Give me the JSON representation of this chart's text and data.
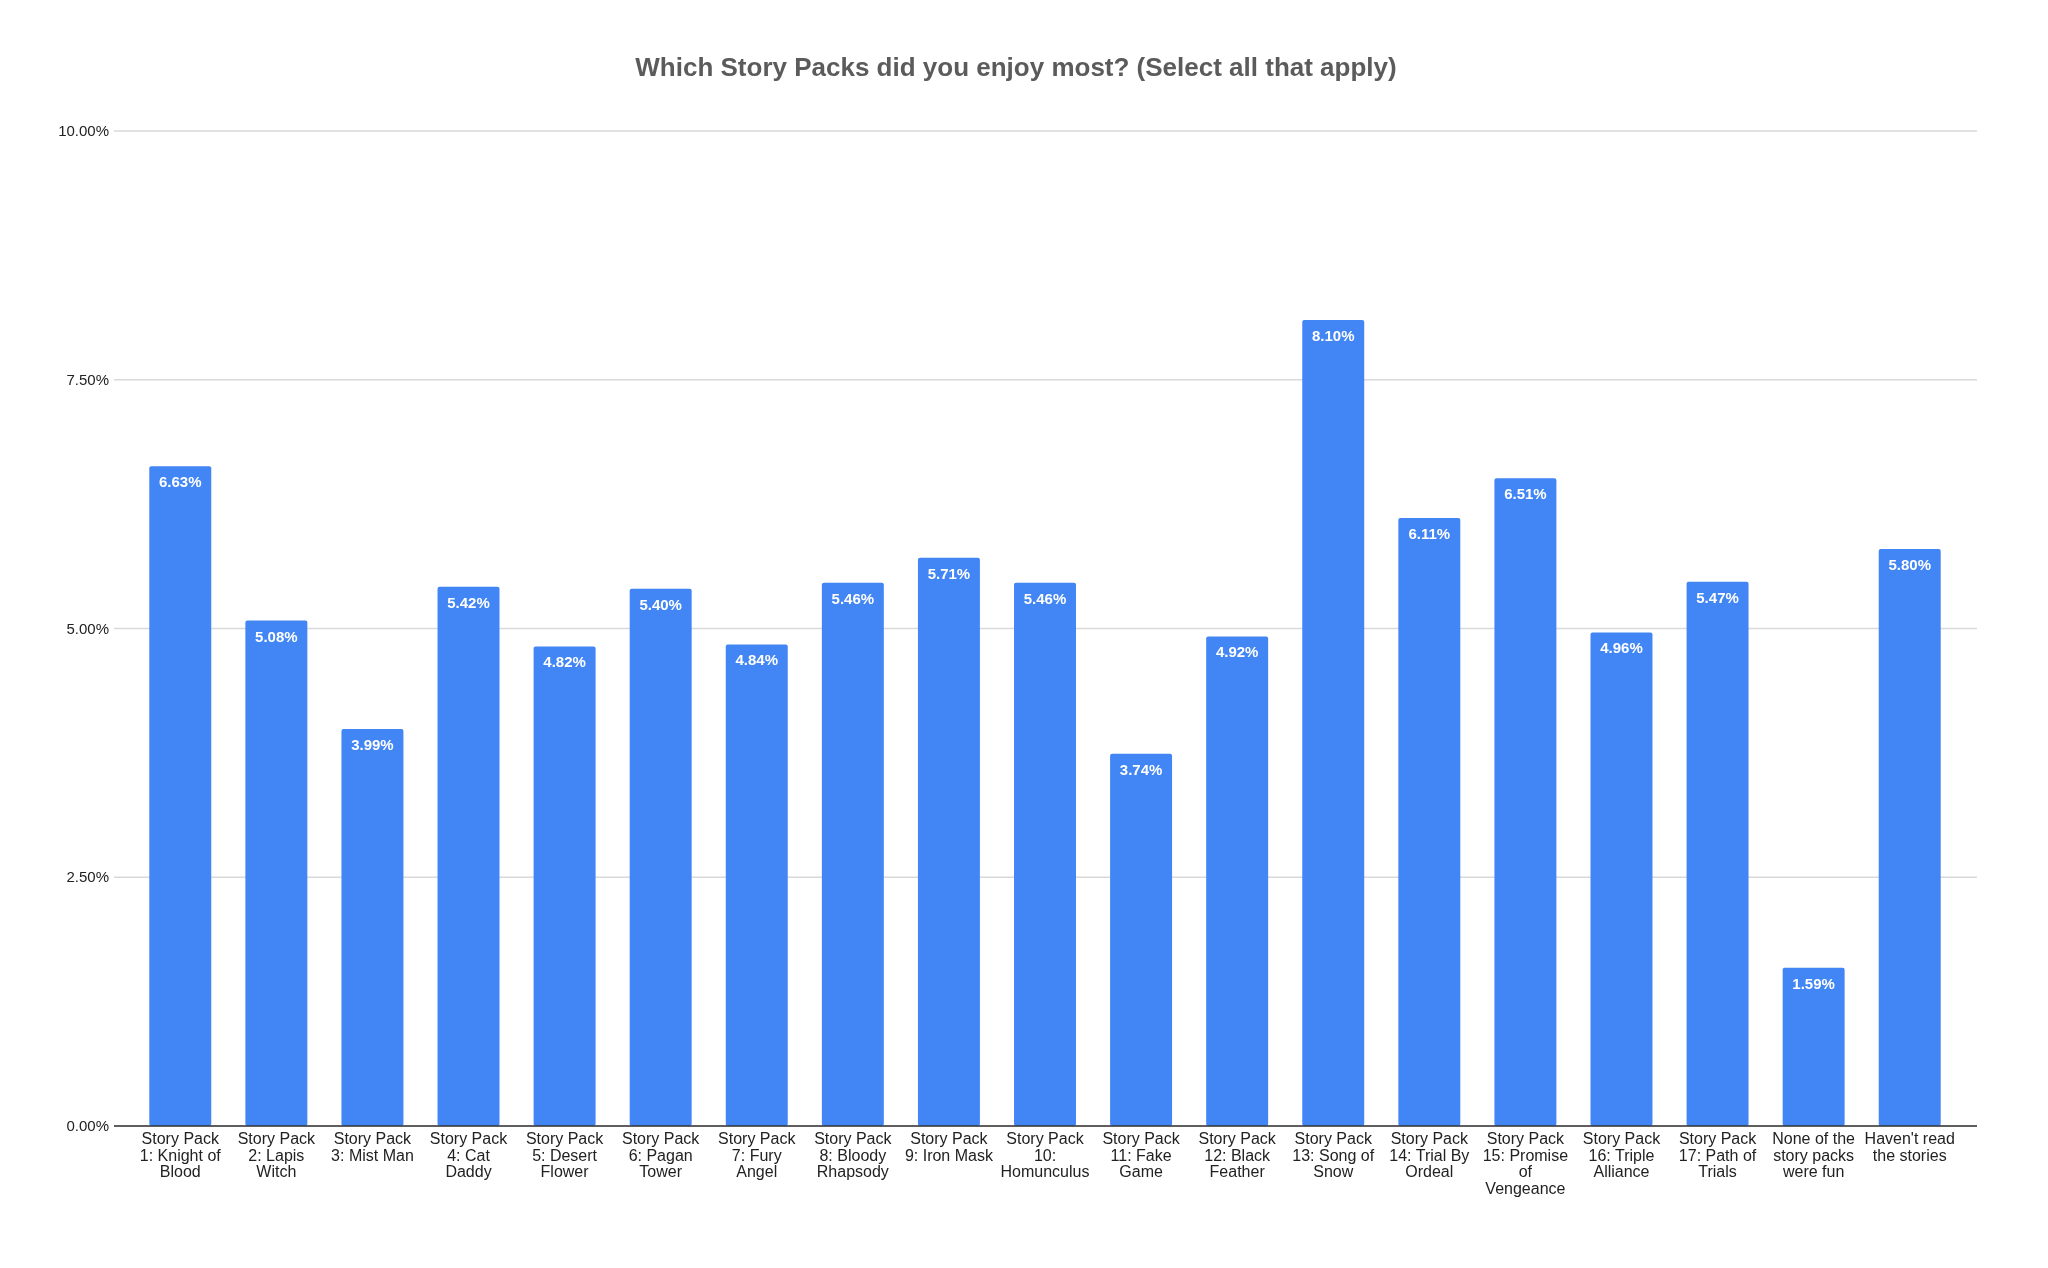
{
  "chart_data": {
    "type": "bar",
    "title": "Which Story Packs did you enjoy most? (Select all that apply)",
    "categories": [
      "Story Pack 1: Knight of Blood",
      "Story Pack 2: Lapis Witch",
      "Story Pack 3: Mist Man",
      "Story Pack 4: Cat Daddy",
      "Story Pack 5: Desert Flower",
      "Story Pack 6: Pagan Tower",
      "Story Pack 7: Fury Angel",
      "Story Pack 8: Bloody Rhapsody",
      "Story Pack 9: Iron Mask",
      "Story Pack 10: Homunculus",
      "Story Pack 11: Fake Game",
      "Story Pack 12: Black Feather",
      "Story Pack 13: Song of Snow",
      "Story Pack 14: Trial By Ordeal",
      "Story Pack 15: Promise of Vengeance",
      "Story Pack 16: Triple Alliance",
      "Story Pack 17: Path of Trials",
      "None of the story packs were fun",
      "Haven't read the stories"
    ],
    "values": [
      6.63,
      5.08,
      3.99,
      5.42,
      4.82,
      5.4,
      4.84,
      5.46,
      5.71,
      5.46,
      3.74,
      4.92,
      8.1,
      6.11,
      6.51,
      4.96,
      5.47,
      1.59,
      5.8
    ],
    "value_labels": [
      "6.63%",
      "5.08%",
      "3.99%",
      "5.42%",
      "4.82%",
      "5.40%",
      "4.84%",
      "5.46%",
      "5.71%",
      "5.46%",
      "3.74%",
      "4.92%",
      "8.10%",
      "6.11%",
      "6.51%",
      "4.96%",
      "5.47%",
      "1.59%",
      "5.80%"
    ],
    "color": "#4285f4",
    "ylim": [
      0,
      10
    ],
    "yticks": [
      {
        "value": 0,
        "label": "0.00%"
      },
      {
        "value": 2.5,
        "label": "2.50%"
      },
      {
        "value": 5,
        "label": "5.00%"
      },
      {
        "value": 7.5,
        "label": "7.50%"
      },
      {
        "value": 10,
        "label": "10.00%"
      }
    ],
    "grid": "y"
  }
}
